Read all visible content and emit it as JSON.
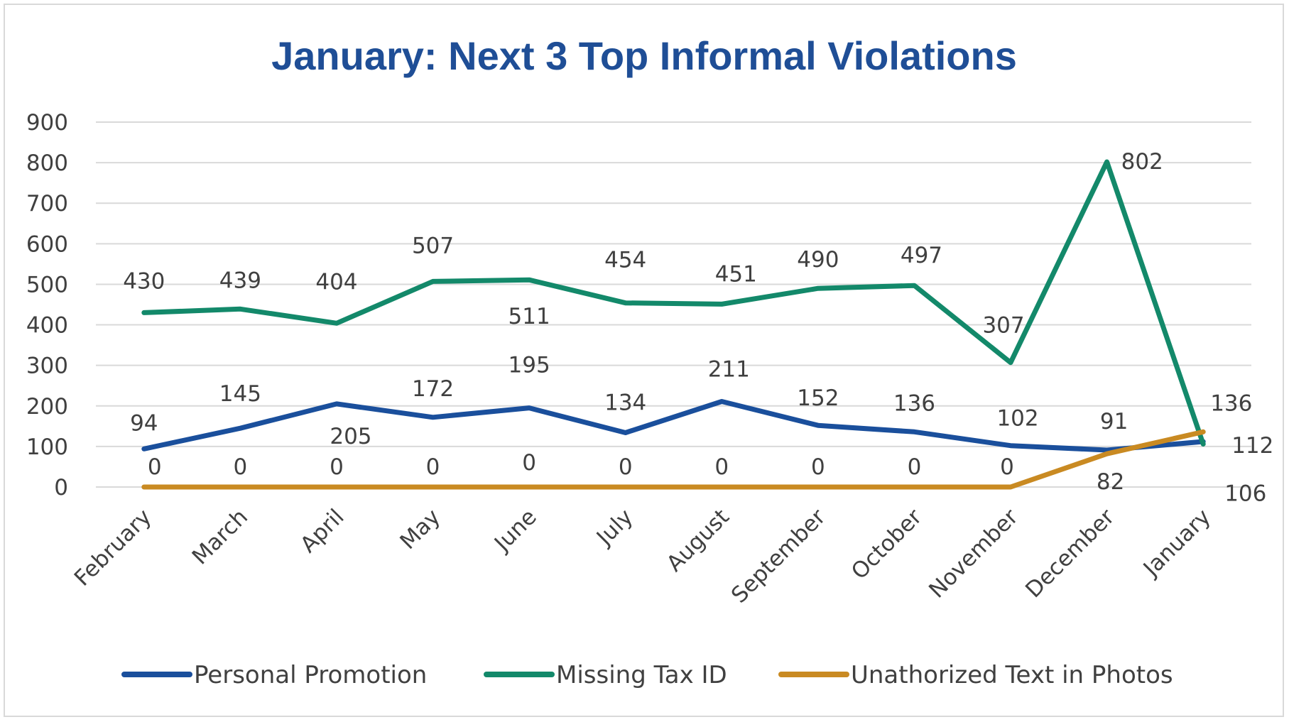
{
  "chart_data": {
    "type": "line",
    "title": "January: Next 3 Top Informal Violations",
    "categories": [
      "February",
      "March",
      "April",
      "May",
      "June",
      "July",
      "August",
      "September",
      "October",
      "November",
      "December",
      "January"
    ],
    "series": [
      {
        "name": "Personal Promotion",
        "color": "#1a4f9c",
        "values": [
          94,
          145,
          205,
          172,
          195,
          134,
          211,
          152,
          136,
          102,
          91,
          112
        ]
      },
      {
        "name": "Missing Tax ID",
        "color": "#13896a",
        "values": [
          430,
          439,
          404,
          507,
          511,
          454,
          451,
          490,
          497,
          307,
          802,
          106
        ]
      },
      {
        "name": "Unathorized Text in Photos",
        "color": "#c98a22",
        "values": [
          0,
          0,
          0,
          0,
          0,
          0,
          0,
          0,
          0,
          0,
          82,
          136
        ]
      }
    ],
    "ylim": [
      0,
      900
    ],
    "yticks": [
      "0",
      "100",
      "200",
      "300",
      "400",
      "500",
      "600",
      "700",
      "800",
      "900"
    ],
    "grid": true,
    "legend": "bottom"
  }
}
